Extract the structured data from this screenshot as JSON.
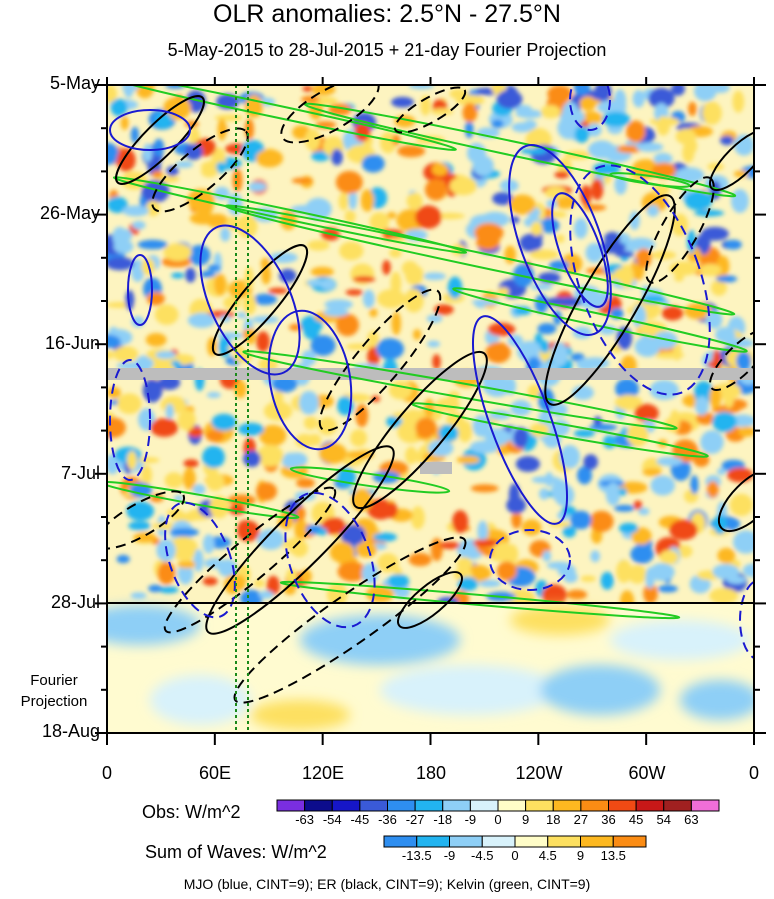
{
  "title": "OLR anomalies: 2.5°N - 27.5°N",
  "subtitle": "5-May-2015 to 28-Jul-2015 + 21-day Fourier Projection",
  "projection_label": [
    "Fourier",
    "Projection"
  ],
  "colorbars": {
    "obs": {
      "title": "Obs: W/m^2",
      "ticks": [
        "-63",
        "-54",
        "-45",
        "-36",
        "-27",
        "-18",
        "-9",
        "0",
        "9",
        "18",
        "27",
        "36",
        "45",
        "54",
        "63"
      ],
      "colors": [
        "#7a2ee0",
        "#0c0c8c",
        "#1616c8",
        "#3a5ad8",
        "#2e8ef0",
        "#22b4f0",
        "#8ecff6",
        "#d8f2fb",
        "#fffdc8",
        "#fde060",
        "#fdb820",
        "#fb8c14",
        "#f04a14",
        "#c81818",
        "#a02020",
        "#f06ed8"
      ]
    },
    "waves": {
      "title": "Sum of Waves: W/m^2",
      "ticks": [
        "-13.5",
        "-9",
        "-4.5",
        "0",
        "4.5",
        "9",
        "13.5"
      ],
      "colors": [
        "#2e8ef0",
        "#22b4f0",
        "#8ecff6",
        "#d8f2fb",
        "#fffdc8",
        "#fde060",
        "#fdb820",
        "#fb8c14"
      ]
    }
  },
  "footer": "MJO (blue, CINT=9); ER (black, CINT=9); Kelvin (green, CINT=9)",
  "chart_data": {
    "type": "heatmap",
    "title": "OLR anomalies: 2.5°N - 27.5°N",
    "subtitle": "5-May-2015 to 28-Jul-2015 + 21-day Fourier Projection",
    "x_ticks": [
      "0",
      "60E",
      "120E",
      "180",
      "120W",
      "60W",
      "0"
    ],
    "x_range_deg_east": [
      0,
      360
    ],
    "y_ticks": [
      "5-May",
      "26-May",
      "16-Jun",
      "7-Jul",
      "28-Jul",
      "18-Aug"
    ],
    "y_range": [
      "5-May-2015",
      "18-Aug-2015"
    ],
    "observation_end": "28-Jul-2015",
    "projection_days": 21,
    "missing_data_rows": [
      "~21-Jun-2015"
    ],
    "contour_sets": [
      {
        "name": "MJO",
        "color": "blue",
        "cint": 9
      },
      {
        "name": "ER",
        "color": "black",
        "cint": 9
      },
      {
        "name": "Kelvin",
        "color": "green",
        "cint": 9
      }
    ],
    "reference_lines_lon": [
      72,
      78
    ]
  }
}
